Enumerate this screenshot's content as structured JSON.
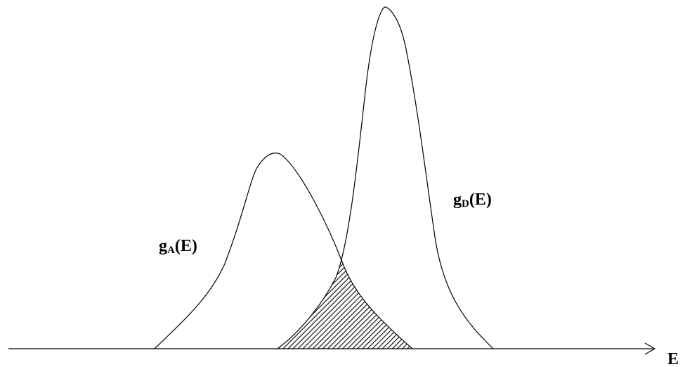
{
  "curves": {
    "acceptor": {
      "label_main": "g",
      "label_sub": "A",
      "label_tail": "(E)"
    },
    "donor": {
      "label_main": "g",
      "label_sub": "D",
      "label_tail": "(E)"
    }
  },
  "axis": {
    "label": "E"
  },
  "overlap": {
    "fill_style": "hatched"
  },
  "colors": {
    "stroke": "#000000",
    "background": "#ffffff"
  }
}
